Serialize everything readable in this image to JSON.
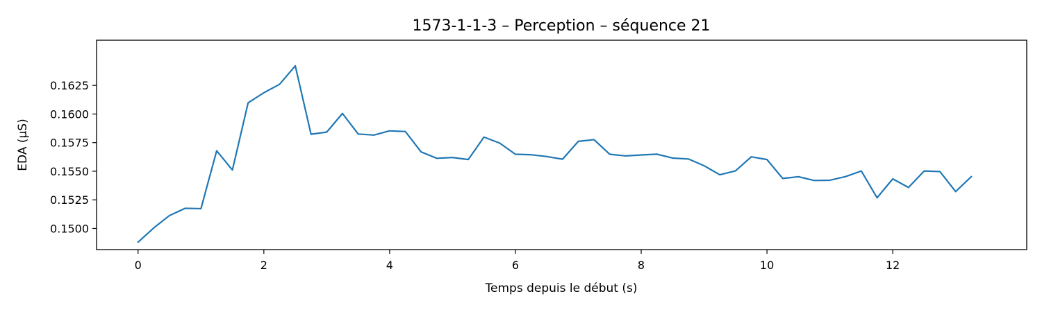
{
  "chart_data": {
    "type": "line",
    "title": "1573-1-1-3 – Perception – séquence 21",
    "xlabel": "Temps depuis le début (s)",
    "ylabel": "EDA (µS)",
    "xlim": [
      -0.66,
      14.13
    ],
    "ylim": [
      0.14815,
      0.16645
    ],
    "xticks": [
      0,
      2,
      4,
      6,
      8,
      10,
      12
    ],
    "xtick_labels": [
      "0",
      "2",
      "4",
      "6",
      "8",
      "10",
      "12"
    ],
    "yticks": [
      0.15,
      0.1525,
      0.155,
      0.1575,
      0.16,
      0.1625
    ],
    "ytick_labels": [
      "0.1500",
      "0.1525",
      "0.1550",
      "0.1575",
      "0.1600",
      "0.1625"
    ],
    "grid": false,
    "series": [
      {
        "color": "#1f77b4",
        "x": [
          0,
          0.25,
          0.5,
          0.75,
          1.0,
          1.25,
          1.5,
          1.75,
          2.0,
          2.25,
          2.5,
          2.75,
          3.0,
          3.25,
          3.5,
          3.75,
          4.0,
          4.25,
          4.5,
          4.75,
          5.0,
          5.25,
          5.5,
          5.75,
          6.0,
          6.25,
          6.5,
          6.75,
          7.0,
          7.25,
          7.5,
          7.75,
          8.0,
          8.25,
          8.5,
          8.75,
          9.0,
          9.25,
          9.5,
          9.75,
          10.0,
          10.25,
          10.5,
          10.75,
          11.0,
          11.25,
          11.5,
          11.75,
          12.0,
          12.25,
          12.5,
          12.75,
          13.0,
          13.25
        ],
        "y": [
          0.1488,
          0.15005,
          0.15113,
          0.15176,
          0.15173,
          0.15679,
          0.15511,
          0.16098,
          0.16186,
          0.1626,
          0.16421,
          0.15823,
          0.15842,
          0.16005,
          0.15825,
          0.15816,
          0.15853,
          0.15847,
          0.15669,
          0.15613,
          0.1562,
          0.15602,
          0.15798,
          0.15746,
          0.15648,
          0.15644,
          0.15628,
          0.15605,
          0.15761,
          0.15776,
          0.15648,
          0.15634,
          0.15642,
          0.15649,
          0.15615,
          0.15607,
          0.15548,
          0.15469,
          0.15503,
          0.15626,
          0.15602,
          0.15437,
          0.15452,
          0.15419,
          0.15421,
          0.15453,
          0.15502,
          0.15268,
          0.15433,
          0.15358,
          0.15502,
          0.15497,
          0.15322,
          0.15453
        ]
      }
    ]
  }
}
